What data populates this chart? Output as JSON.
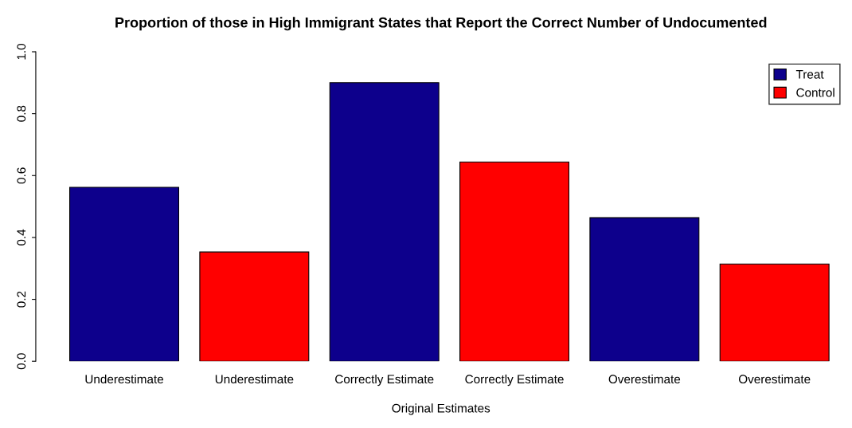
{
  "chart_data": {
    "type": "bar",
    "title": "Proportion of those in High Immigrant States that Report the Correct Number of Undocumented",
    "xlabel": "Original Estimates",
    "categories": [
      "Underestimate",
      "Underestimate",
      "Correctly Estimate",
      "Correctly Estimate",
      "Overestimate",
      "Overestimate"
    ],
    "series": [
      {
        "name": "Treat",
        "color": "#0d008c",
        "values": [
          0.562,
          null,
          0.9,
          null,
          0.464,
          null
        ]
      },
      {
        "name": "Control",
        "color": "#ff0000",
        "values": [
          null,
          0.353,
          null,
          0.644,
          null,
          0.314
        ]
      }
    ],
    "ylim": [
      0,
      1.0
    ],
    "yticks": [
      {
        "value": 0,
        "label": "0.0"
      },
      0.2,
      0.4,
      0.6,
      0.8,
      {
        "value": 1.0,
        "label": "1.0"
      }
    ],
    "grid": false,
    "legend": "top right"
  }
}
